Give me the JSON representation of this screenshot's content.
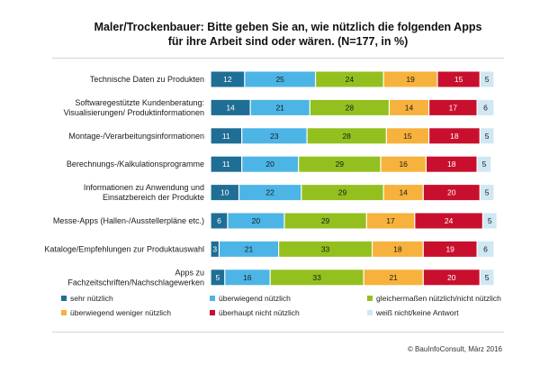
{
  "chart_data": {
    "type": "bar",
    "orientation": "horizontal",
    "stacked": true,
    "percent_stacked": true,
    "title": "Maler/Trockenbauer: Bitte geben Sie an, wie nützlich die folgenden Apps für ihre Arbeit sind oder wären. (N=177, in %)",
    "title_lines": [
      "Maler/Trockenbauer: Bitte geben Sie an, wie nützlich die folgenden Apps",
      "für ihre Arbeit sind oder wären. (N=177, in %)"
    ],
    "xlim": [
      0,
      100
    ],
    "grid": false,
    "legend_position": "bottom",
    "categories": [
      [
        "Technische Daten zu Produkten"
      ],
      [
        "Softwaregestützte Kundenberatung:",
        "Visualisierungen/ Produktinformationen"
      ],
      [
        "Montage-/Verarbeitungsinformationen"
      ],
      [
        "Berechnungs-/Kalkulationsprogramme"
      ],
      [
        "Informationen zu Anwendung und",
        "Einsatzbereich der Produkte"
      ],
      [
        "Messe-Apps (Hallen-/Ausstellerpläne etc.)"
      ],
      [
        "Kataloge/Empfehlungen zur Produktauswahl"
      ],
      [
        "Apps zu",
        "Fachzeitschriften/Nachschlagewerken"
      ]
    ],
    "series": [
      {
        "name": "sehr nützlich",
        "color": "#1f6e95",
        "label_color": "#ffffff",
        "values": [
          12,
          14,
          11,
          11,
          10,
          6,
          3,
          5
        ]
      },
      {
        "name": "überwiegend nützlich",
        "color": "#4cb5e6",
        "label_color": "#1a1a1a",
        "values": [
          25,
          21,
          23,
          20,
          22,
          20,
          21,
          16
        ]
      },
      {
        "name": "gleichermaßen nützlich/nicht nützlich",
        "color": "#93c01f",
        "label_color": "#1a1a1a",
        "values": [
          24,
          28,
          28,
          29,
          29,
          29,
          33,
          33
        ]
      },
      {
        "name": "überwiegend weniger nützlich",
        "color": "#f6b23c",
        "label_color": "#1a1a1a",
        "values": [
          19,
          14,
          15,
          16,
          14,
          17,
          18,
          21
        ]
      },
      {
        "name": "überhaupt nicht nützlich",
        "color": "#c8102e",
        "label_color": "#ffffff",
        "values": [
          15,
          17,
          18,
          18,
          20,
          24,
          19,
          20
        ]
      },
      {
        "name": "weiß nicht/keine Antwort",
        "color": "#cfe8f3",
        "label_color": "#1a1a1a",
        "values": [
          5,
          6,
          5,
          5,
          5,
          5,
          6,
          5
        ]
      }
    ],
    "source": "© BauInfoConsult, März 2016"
  }
}
